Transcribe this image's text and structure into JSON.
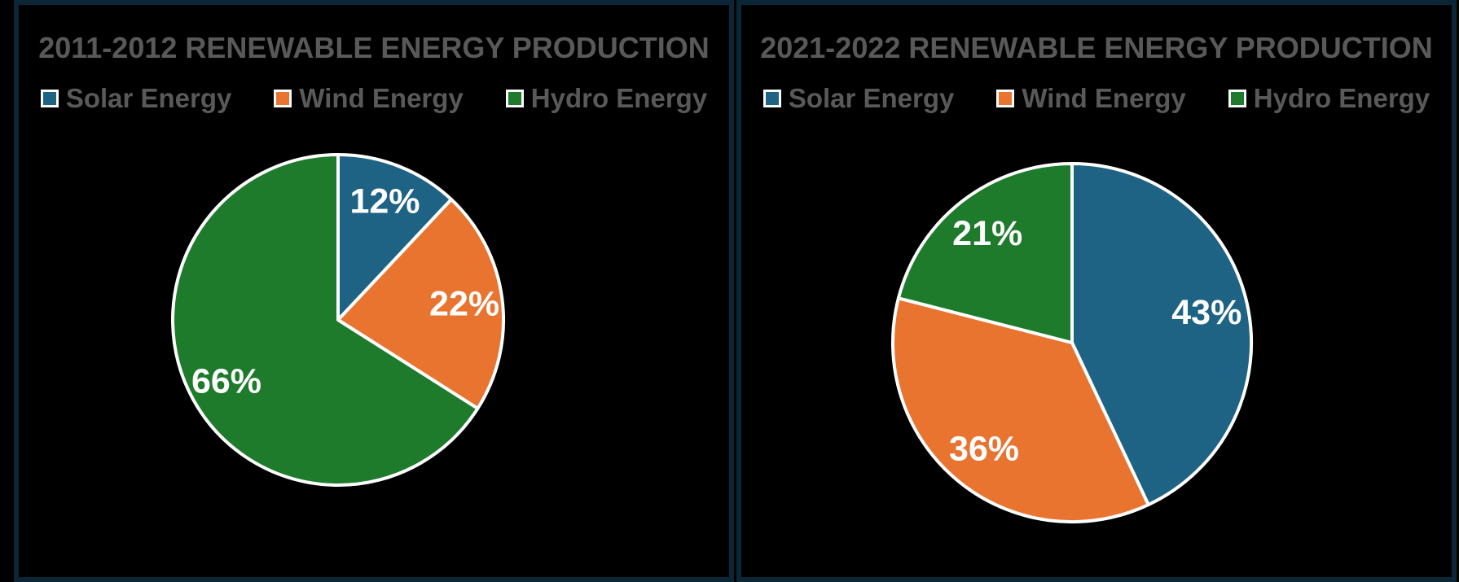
{
  "ui_colors": {
    "background": "#000000",
    "panel_border": "#0B2737",
    "title_text": "#595959",
    "legend_text": "#595959",
    "slice_label_text": "#FFFFFF",
    "slice_outline": "#FFFFFF",
    "solar_blue": "#1F6384",
    "wind_orange": "#E8742F",
    "hydro_green": "#1E7B2C"
  },
  "chart_data": [
    {
      "type": "pie",
      "title": "2011-2012 RENEWABLE ENERGY PRODUCTION",
      "categories": [
        "Solar Energy",
        "Wind Energy",
        "Hydro Energy"
      ],
      "values": [
        12,
        22,
        66
      ],
      "labels": [
        "12%",
        "22%",
        "66%"
      ],
      "colors": [
        "#1F6384",
        "#E8742F",
        "#1E7B2C"
      ],
      "legend_position": "top",
      "start_angle_deg": 0,
      "direction": "clockwise"
    },
    {
      "type": "pie",
      "title": "2021-2022 RENEWABLE ENERGY PRODUCTION",
      "categories": [
        "Solar Energy",
        "Wind Energy",
        "Hydro Energy"
      ],
      "values": [
        43,
        36,
        21
      ],
      "labels": [
        "43%",
        "36%",
        "21%"
      ],
      "colors": [
        "#1F6384",
        "#E8742F",
        "#1E7B2C"
      ],
      "legend_position": "top",
      "start_angle_deg": 0,
      "direction": "clockwise"
    }
  ]
}
